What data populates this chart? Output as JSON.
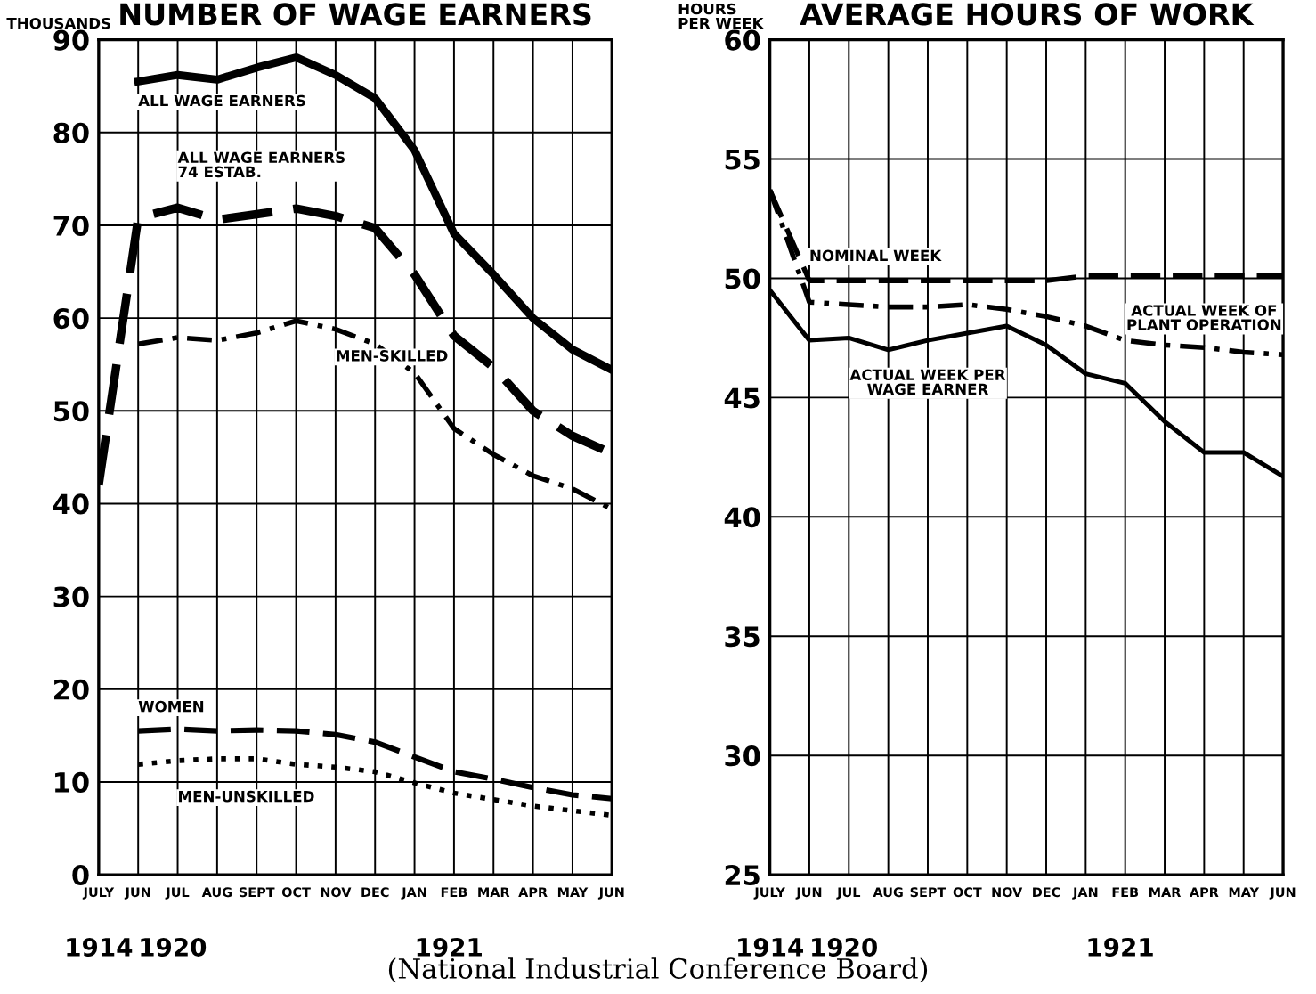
{
  "chart_data": [
    {
      "type": "line",
      "title": "NUMBER OF WAGE EARNERS",
      "ylabel": "THOUSANDS",
      "categories": [
        "JULY",
        "JUN",
        "JUL",
        "AUG",
        "SEPT",
        "OCT",
        "NOV",
        "DEC",
        "JAN",
        "FEB",
        "MAR",
        "APR",
        "MAY",
        "JUN"
      ],
      "annotations": [
        "1914",
        "1920",
        "1921"
      ],
      "ylim": [
        0,
        90
      ],
      "yticks": [
        0,
        10,
        20,
        30,
        40,
        50,
        60,
        70,
        80,
        90
      ],
      "grid": true,
      "legend": false,
      "series": [
        {
          "name": "ALL WAGE EARNERS",
          "color": "#000000",
          "line_style": "solid",
          "values": [
            null,
            85.5,
            86.2,
            85.7,
            87,
            88.1,
            86.2,
            83.7,
            78.1,
            69.1,
            64.7,
            60,
            56.6,
            54.4
          ]
        },
        {
          "name": "ALL WAGE EARNERS\n74 ESTAB.",
          "color": "#000000",
          "line_style": "dashed",
          "values": [
            42,
            70.8,
            71.9,
            70.6,
            71.2,
            71.8,
            71,
            69.7,
            64.7,
            58.1,
            54.7,
            50,
            47.3,
            45.4
          ]
        },
        {
          "name": "MEN-SKILLED",
          "color": "#000000",
          "line_style": "dashdot",
          "values": [
            null,
            57.2,
            57.9,
            57.6,
            58.4,
            59.7,
            58.8,
            57.2,
            54.1,
            48.1,
            45.3,
            43,
            41.6,
            39.4
          ]
        },
        {
          "name": "WOMEN",
          "color": "#000000",
          "line_style": "dashed",
          "values": [
            null,
            15.5,
            15.7,
            15.5,
            15.6,
            15.5,
            15.1,
            14.3,
            12.7,
            11.1,
            10.3,
            9.4,
            8.6,
            8.2
          ]
        },
        {
          "name": "MEN-UNSKILLED",
          "color": "#000000",
          "line_style": "dotted",
          "values": [
            null,
            11.9,
            12.3,
            12.5,
            12.5,
            11.9,
            11.6,
            11.1,
            9.9,
            8.8,
            8.1,
            7.4,
            6.9,
            6.4
          ]
        }
      ]
    },
    {
      "type": "line",
      "title": "AVERAGE HOURS OF WORK",
      "ylabel": "HOURS\nPER WEEK",
      "categories": [
        "JULY",
        "JUN",
        "JUL",
        "AUG",
        "SEPT",
        "OCT",
        "NOV",
        "DEC",
        "JAN",
        "FEB",
        "MAR",
        "APR",
        "MAY",
        "JUN"
      ],
      "annotations": [
        "1914",
        "1920",
        "1921",
        "(National Industrial Conference Board)"
      ],
      "ylim": [
        25,
        60
      ],
      "yticks": [
        25,
        30,
        35,
        40,
        45,
        50,
        55,
        60
      ],
      "grid": true,
      "legend": false,
      "series": [
        {
          "name": "NOMINAL WEEK",
          "color": "#000000",
          "line_style": "dashed",
          "values": [
            53.7,
            49.9,
            49.9,
            49.9,
            49.9,
            49.9,
            49.9,
            49.9,
            50.1,
            50.1,
            50.1,
            50.1,
            50.1,
            50.1
          ]
        },
        {
          "name": "ACTUAL WEEK OF\nPLANT OPERATION",
          "color": "#000000",
          "line_style": "dashdot",
          "values": [
            53.7,
            49.0,
            48.9,
            48.8,
            48.8,
            48.9,
            48.7,
            48.4,
            48.0,
            47.4,
            47.2,
            47.1,
            46.9,
            46.8
          ]
        },
        {
          "name": "ACTUAL WEEK PER\nWAGE EARNER",
          "color": "#000000",
          "line_style": "solid",
          "values": [
            49.5,
            47.4,
            47.5,
            47.0,
            47.4,
            47.7,
            48.0,
            47.2,
            46.0,
            45.6,
            44.0,
            42.7,
            42.7,
            41.7
          ]
        }
      ]
    }
  ]
}
